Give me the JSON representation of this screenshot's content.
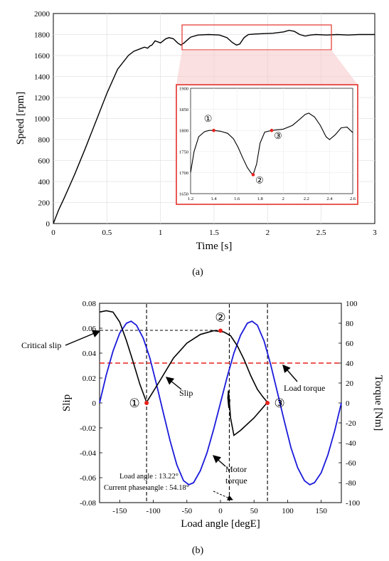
{
  "chart_data": [
    {
      "panel": "a",
      "type": "line",
      "caption": "(a)",
      "xlabel": "Time [s]",
      "ylabel": "Speed [rpm]",
      "xlim": [
        0,
        3
      ],
      "ylim": [
        0,
        2000
      ],
      "xticks": [
        "0",
        "0.5",
        "1",
        "1.5",
        "2",
        "2.5",
        "3"
      ],
      "yticks": [
        "0",
        "200",
        "400",
        "600",
        "800",
        "1000",
        "1200",
        "1400",
        "1600",
        "1800",
        "2000"
      ],
      "grid": true,
      "series": [
        {
          "color": "#000000",
          "x": [
            0,
            0.05,
            0.1,
            0.2,
            0.3,
            0.4,
            0.5,
            0.6,
            0.7,
            0.75,
            0.8,
            0.85,
            0.88,
            0.9,
            0.92,
            0.95,
            1.0,
            1.05,
            1.08,
            1.12,
            1.16,
            1.19,
            1.22,
            1.28,
            1.35,
            1.45,
            1.55,
            1.62,
            1.67,
            1.71,
            1.74,
            1.78,
            1.82,
            1.88,
            1.95,
            2.05,
            2.15,
            2.2,
            2.25,
            2.3,
            2.35,
            2.4,
            2.45,
            2.55,
            2.65,
            2.75,
            2.85,
            3.0
          ],
          "y": [
            0,
            130,
            240,
            470,
            720,
            980,
            1240,
            1470,
            1600,
            1640,
            1660,
            1680,
            1670,
            1690,
            1700,
            1740,
            1720,
            1760,
            1770,
            1760,
            1720,
            1700,
            1720,
            1775,
            1795,
            1800,
            1795,
            1770,
            1725,
            1700,
            1710,
            1770,
            1800,
            1805,
            1808,
            1812,
            1825,
            1840,
            1830,
            1800,
            1785,
            1795,
            1800,
            1795,
            1800,
            1795,
            1800,
            1800
          ]
        }
      ]
    },
    {
      "panel": "a-inset",
      "type": "line",
      "xlim": [
        1.2,
        2.6
      ],
      "ylim": [
        1650,
        1900
      ],
      "xticks": [
        "1.2",
        "1.4",
        "1.6",
        "1.8",
        "2",
        "2.2",
        "2.4",
        "2.6"
      ],
      "yticks": [
        "1650",
        "1700",
        "1750",
        "1800",
        "1850",
        "1900"
      ],
      "grid": true,
      "markers": [
        {
          "label": "①",
          "x": 1.4,
          "y": 1800
        },
        {
          "label": "②",
          "x": 1.74,
          "y": 1695
        },
        {
          "label": "③",
          "x": 1.9,
          "y": 1800
        }
      ],
      "series": [
        {
          "color": "#000000",
          "x": [
            1.2,
            1.23,
            1.27,
            1.32,
            1.36,
            1.4,
            1.46,
            1.52,
            1.57,
            1.61,
            1.65,
            1.69,
            1.72,
            1.74,
            1.77,
            1.8,
            1.84,
            1.9,
            2.0,
            2.08,
            2.14,
            2.19,
            2.22,
            2.27,
            2.32,
            2.37,
            2.4,
            2.45,
            2.5,
            2.55,
            2.6
          ],
          "y": [
            1700,
            1750,
            1785,
            1797,
            1800,
            1800,
            1798,
            1793,
            1780,
            1760,
            1735,
            1712,
            1700,
            1695,
            1720,
            1770,
            1796,
            1800,
            1803,
            1812,
            1826,
            1838,
            1841,
            1832,
            1812,
            1785,
            1778,
            1790,
            1806,
            1808,
            1795
          ]
        }
      ]
    },
    {
      "panel": "b",
      "type": "line",
      "caption": "(b)",
      "xlabel": "Load angle [degE]",
      "ylabel": "Slip",
      "y2label": "Torque [Nm]",
      "xlim": [
        -180,
        180
      ],
      "ylim": [
        -0.08,
        0.08
      ],
      "y2lim": [
        -100,
        100
      ],
      "xticks": [
        "-150",
        "-100",
        "-50",
        "0",
        "50",
        "100",
        "150"
      ],
      "yticks": [
        "-0.08",
        "-0.06",
        "-0.04",
        "-0.02",
        "0",
        "0.02",
        "0.04",
        "0.06",
        "0.08"
      ],
      "y2ticks": [
        "-100",
        "-80",
        "-60",
        "-40",
        "-20",
        "0",
        "20",
        "40",
        "60",
        "80",
        "100"
      ],
      "grid": false,
      "series": [
        {
          "axis": "right",
          "color": "#1a1adb",
          "x": [
            -180,
            -170,
            -160,
            -150,
            -140,
            -133,
            -125,
            -115,
            -105,
            -95,
            -85,
            -75,
            -65,
            -55,
            -47,
            -40,
            -30,
            -20,
            -10,
            0,
            10,
            20,
            30,
            40,
            47,
            55,
            65,
            75,
            85,
            95,
            105,
            115,
            125,
            133,
            140,
            150,
            160,
            170,
            180
          ],
          "y": [
            0,
            28,
            52,
            70,
            80,
            82,
            78,
            65,
            45,
            18,
            -10,
            -38,
            -62,
            -78,
            -82,
            -80,
            -68,
            -50,
            -26,
            0,
            26,
            50,
            68,
            80,
            82,
            78,
            62,
            38,
            10,
            -18,
            -45,
            -65,
            -78,
            -82,
            -80,
            -70,
            -52,
            -28,
            0
          ]
        },
        {
          "axis": "left",
          "color": "#000000",
          "x": [
            -180,
            -170,
            -160,
            -150,
            -140,
            -130,
            -120,
            -110,
            -90,
            -70,
            -50,
            -30,
            -10,
            5,
            15,
            25,
            35,
            45,
            55,
            63,
            70,
            50,
            30,
            20,
            15,
            12,
            11,
            12.5,
            14,
            13
          ],
          "y": [
            0.073,
            0.074,
            0.073,
            0.065,
            0.05,
            0.033,
            0.015,
            0.0005,
            0.018,
            0.036,
            0.048,
            0.055,
            0.058,
            0.057,
            0.054,
            0.046,
            0.035,
            0.022,
            0.011,
            0.005,
            0.0005,
            -0.012,
            -0.022,
            -0.026,
            -0.012,
            0.01,
            0.004,
            -0.004,
            0.003,
            0.0
          ]
        },
        {
          "name": "Load torque",
          "axis": "right",
          "color": "#e8211b",
          "style": "dashed",
          "x": [
            -180,
            180
          ],
          "y": [
            40,
            40
          ]
        }
      ],
      "points": [
        {
          "label": "①",
          "x": -110,
          "y": 0
        },
        {
          "label": "②",
          "x": 0,
          "y": 0.058
        },
        {
          "label": "③",
          "x": 70,
          "y": 0
        }
      ],
      "vlines": [
        -110,
        13.22,
        70
      ],
      "annotations": {
        "critical_slip": "Critical slip",
        "slip": "Slip",
        "load_torque": "Load torque",
        "motor_torque_1": "Motor",
        "motor_torque_2": "torque",
        "load_angle": "Load angle : 13.22°",
        "current_phase_angle": "Current phase angle : 54.18°"
      }
    }
  ]
}
